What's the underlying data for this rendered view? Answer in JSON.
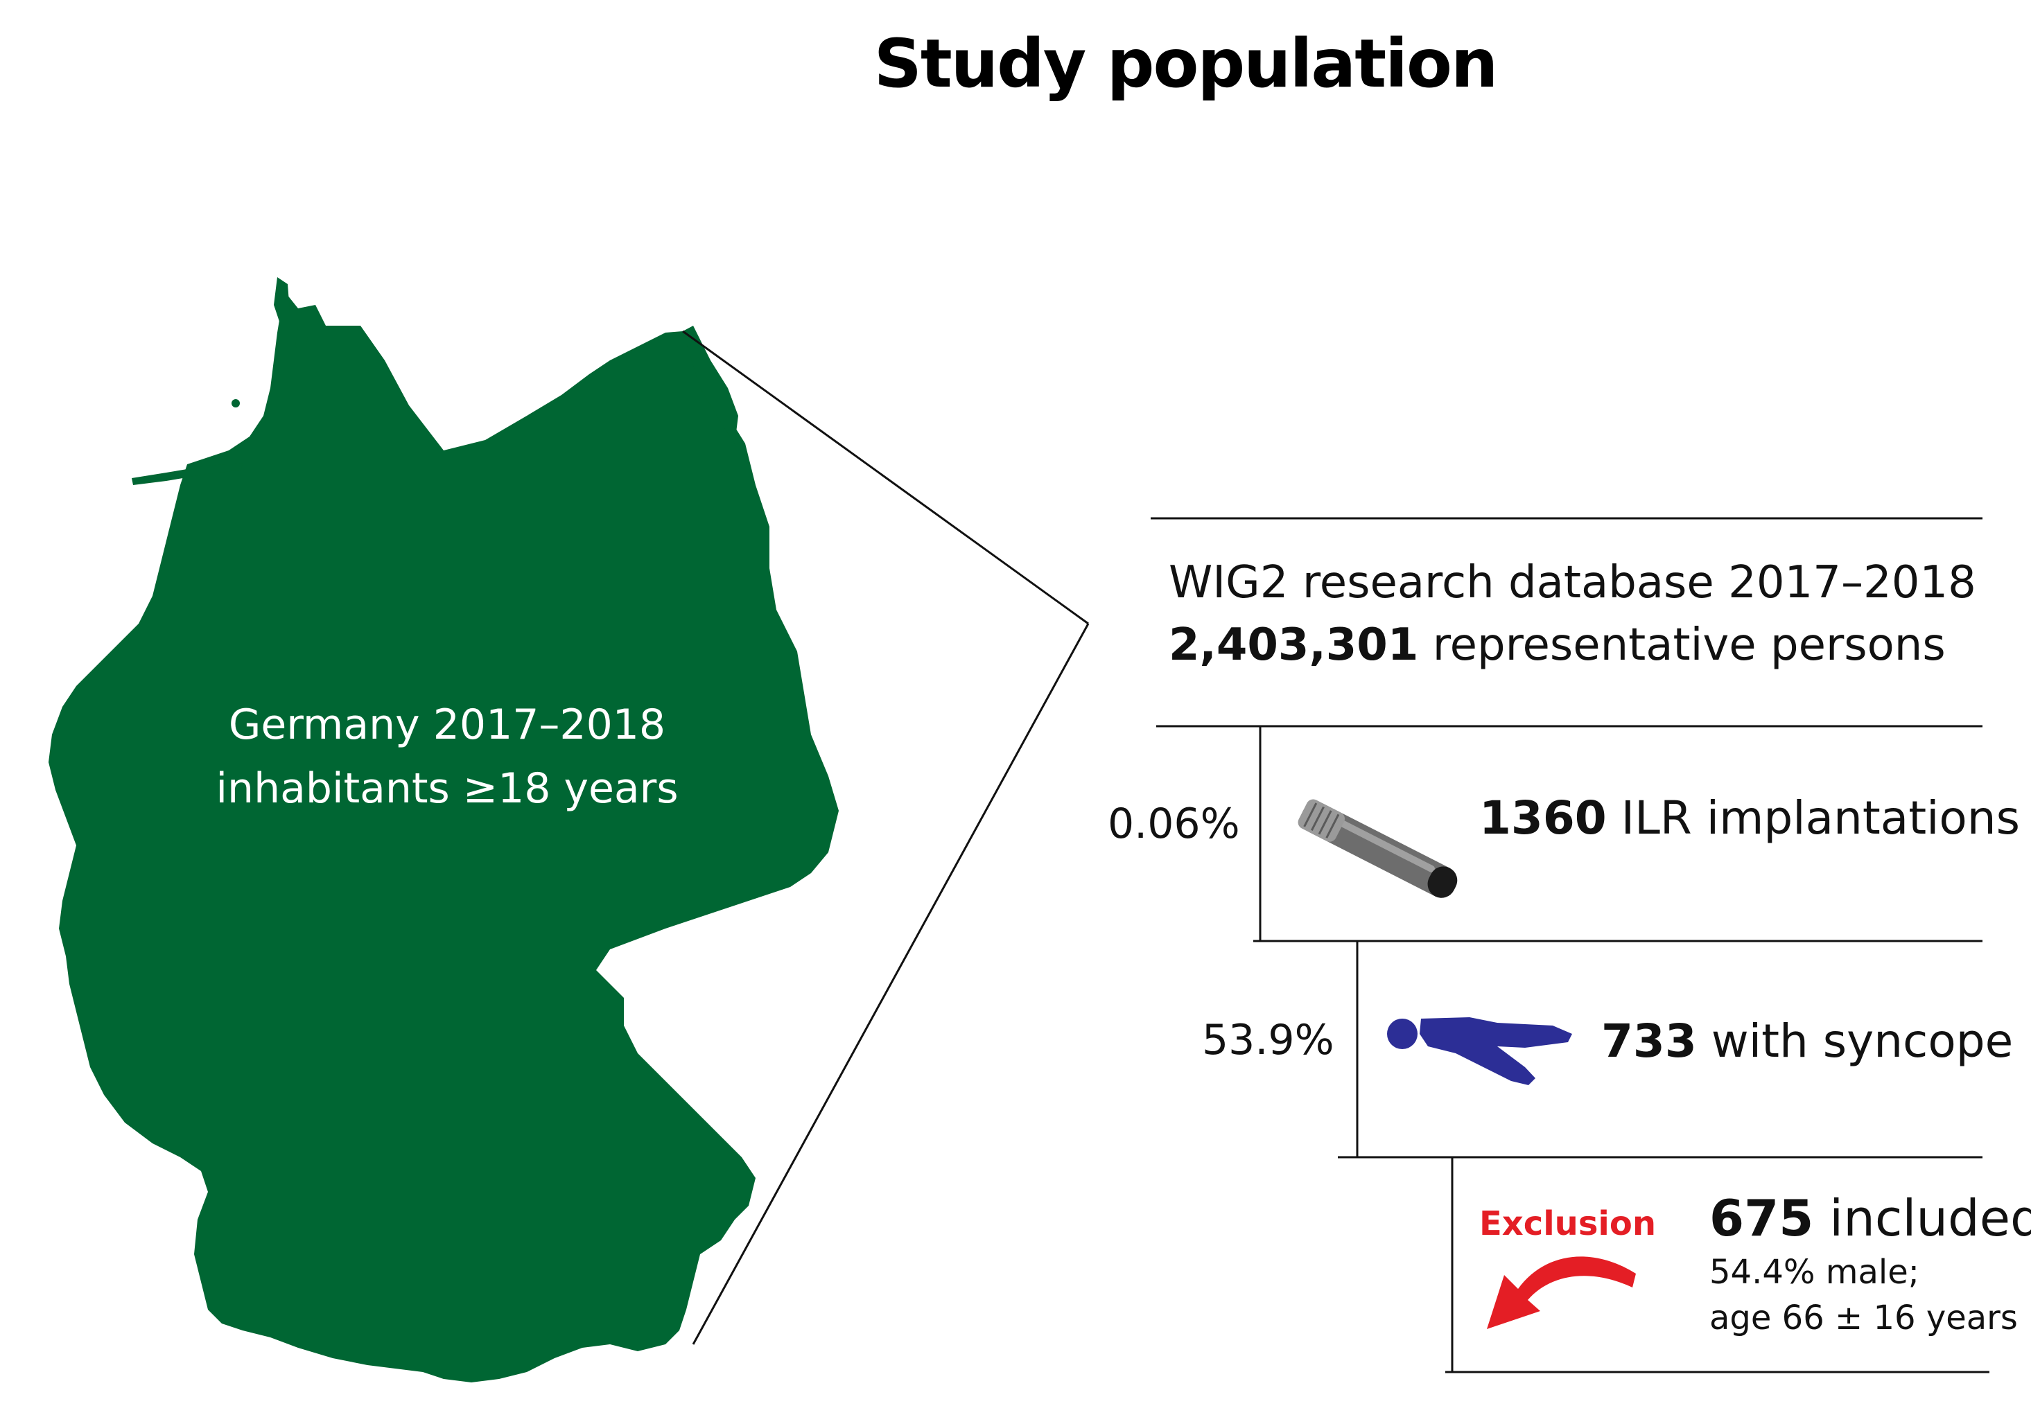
{
  "title": "Study population",
  "colors": {
    "germany_fill": "#006633",
    "exclusion_red": "#e41e25",
    "person_blue": "#2c2e96",
    "device_gray": "#6d6d6d"
  },
  "map": {
    "label_line1": "Germany 2017–2018",
    "label_line2": "inhabitants ≥18 years"
  },
  "database": {
    "line1": "WIG2 research database 2017–2018",
    "count": "2,403,301",
    "count_suffix": " representative persons"
  },
  "steps": [
    {
      "percent": "0.06%",
      "count": "1360",
      "label": " ILR implantations",
      "icon": "loop-recorder-icon"
    },
    {
      "percent": "53.9%",
      "count": "733",
      "label": " with syncope",
      "icon": "lying-person-icon"
    }
  ],
  "final": {
    "exclusion_label": "Exclusion",
    "count": "675",
    "label": " included",
    "detail_line1": "54.4% male;",
    "detail_line2": "age 66 ± 16 years"
  }
}
